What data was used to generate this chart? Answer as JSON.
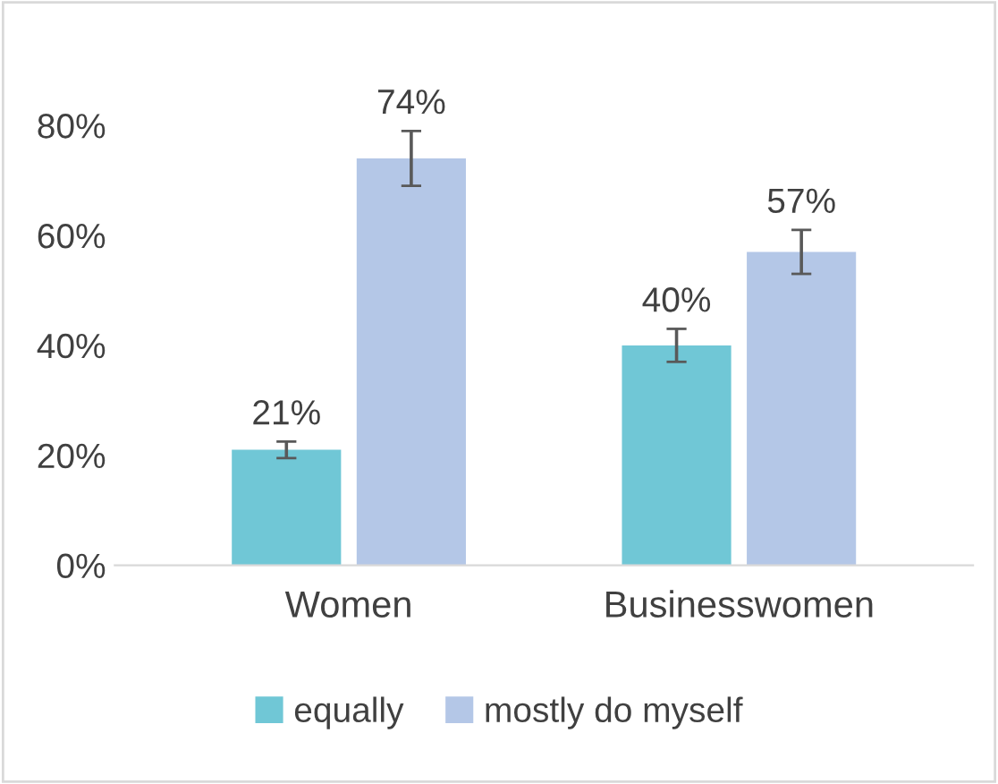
{
  "chart_data": {
    "type": "bar",
    "categories": [
      "Women",
      "Businesswomen"
    ],
    "series": [
      {
        "name": "equally",
        "color": "#70c7d6",
        "values": [
          21,
          40
        ],
        "errors": [
          1.5,
          3
        ]
      },
      {
        "name": "mostly do myself",
        "color": "#b4c7e7",
        "values": [
          74,
          57
        ],
        "errors": [
          5,
          4
        ]
      }
    ],
    "ylim": [
      0,
      80
    ],
    "yticks": [
      {
        "value": 0,
        "label": "0%"
      },
      {
        "value": 20,
        "label": "20%"
      },
      {
        "value": 40,
        "label": "40%"
      },
      {
        "value": 60,
        "label": "60%"
      },
      {
        "value": 80,
        "label": "80%"
      }
    ],
    "value_labels": [
      [
        "21%",
        "40%"
      ],
      [
        "74%",
        "57%"
      ]
    ],
    "grid": false,
    "legend": "bottom"
  }
}
